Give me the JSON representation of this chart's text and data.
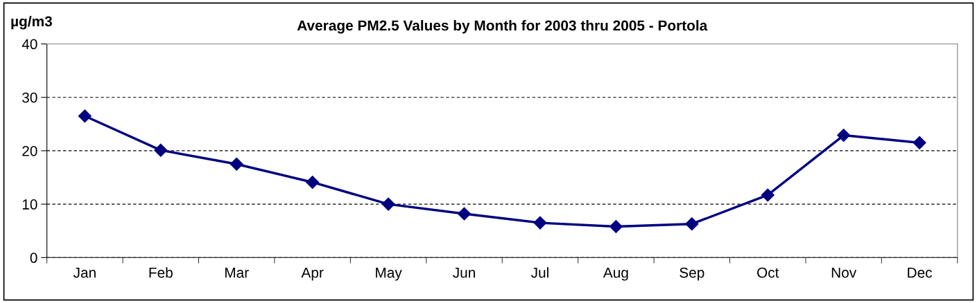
{
  "chart_data": {
    "type": "line",
    "title": "Average PM2.5 Values by Month for 2003 thru 2005 - Portola",
    "ylabel": "µg/m3",
    "categories": [
      "Jan",
      "Feb",
      "Mar",
      "Apr",
      "May",
      "Jun",
      "Jul",
      "Aug",
      "Sep",
      "Oct",
      "Nov",
      "Dec"
    ],
    "series": [
      {
        "color": "#000080",
        "values": [
          26.5,
          20.1,
          17.5,
          14.1,
          10.0,
          8.2,
          6.5,
          5.8,
          6.3,
          11.7,
          22.9,
          21.5
        ]
      }
    ],
    "ylim": [
      0,
      40
    ],
    "yticks": [
      0,
      10,
      20,
      30,
      40
    ],
    "grid": "y",
    "marker": "diamond",
    "line_style": "solid",
    "legend": false
  }
}
